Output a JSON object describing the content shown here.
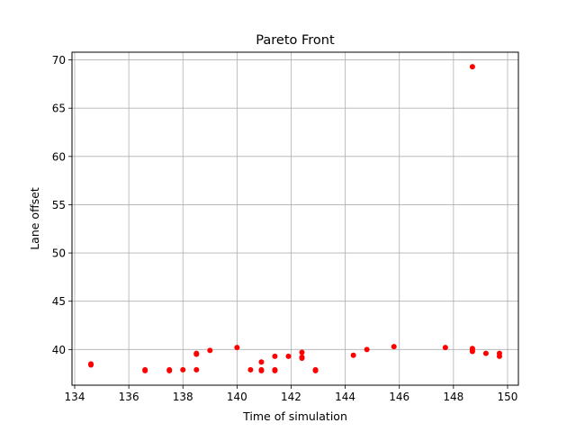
{
  "chart_data": {
    "type": "scatter",
    "title": "Pareto Front",
    "xlabel": "Time of simulation",
    "ylabel": "Lane offset",
    "xlim": [
      133.9,
      150.4
    ],
    "ylim": [
      36.3,
      70.8
    ],
    "xticks": [
      134,
      136,
      138,
      140,
      142,
      144,
      146,
      148,
      150
    ],
    "yticks": [
      40,
      45,
      50,
      55,
      60,
      65,
      70
    ],
    "grid": true,
    "marker_color": "#ff0000",
    "series": [
      {
        "x": [
          134.6,
          134.6,
          136.6,
          136.6,
          137.5,
          137.5,
          138.0,
          138.5,
          138.5,
          138.5,
          139.0,
          140.0,
          140.5,
          140.9,
          140.9,
          140.9,
          141.4,
          141.4,
          141.4,
          141.9,
          142.4,
          142.4,
          142.4,
          142.9,
          142.9,
          144.3,
          144.8,
          145.8,
          147.7,
          148.7,
          148.7,
          148.7,
          148.7,
          149.2,
          149.7,
          149.7
        ],
        "y": [
          38.5,
          38.4,
          37.9,
          37.8,
          37.9,
          37.8,
          37.9,
          39.6,
          39.5,
          37.9,
          39.9,
          40.2,
          37.9,
          38.7,
          37.9,
          37.8,
          39.3,
          37.9,
          37.8,
          39.3,
          39.7,
          39.2,
          39.1,
          37.9,
          37.8,
          39.4,
          40.0,
          40.3,
          40.2,
          40.1,
          39.9,
          39.8,
          69.3,
          39.6,
          39.6,
          39.3
        ]
      }
    ]
  }
}
